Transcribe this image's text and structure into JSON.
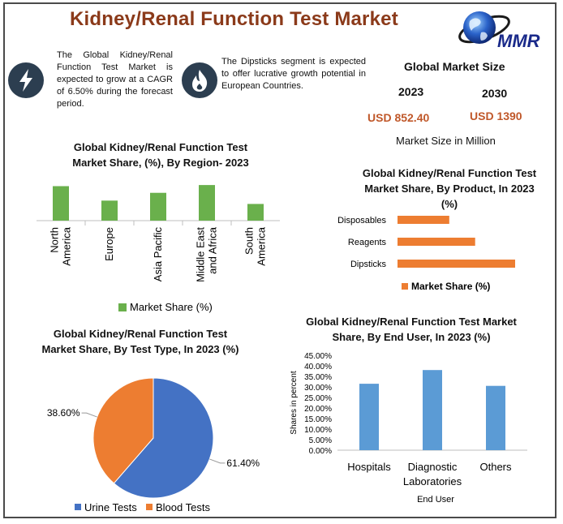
{
  "title": "Kidney/Renal Function Test Market",
  "logo": {
    "text": "MMR"
  },
  "info1": {
    "text": "The Global Kidney/Renal Function Test Market is expected to grow at a CAGR of 6.50% during the forecast period."
  },
  "info2": {
    "text": "The Dipsticks segment is expected to offer lucrative growth potential in European Countries."
  },
  "market_size": {
    "heading": "Global Market Size",
    "year1": "2023",
    "year2": "2030",
    "value1": "USD 852.40",
    "value2": "USD 1390",
    "caption": "Market Size in Million",
    "value_color": "#c0582a"
  },
  "colors": {
    "green": "#6ab04c",
    "orange": "#ed7d31",
    "blue": "#4472c4",
    "lightblue": "#5b9bd5",
    "icon_bg": "#2c3e50"
  },
  "chart_data": [
    {
      "type": "bar",
      "title": "Global Kidney/Renal Function Test Market Share, (%), By Region- 2023",
      "categories": [
        "North America",
        "Europe",
        "Asia Pacific",
        "Middle East and Africa",
        "South America"
      ],
      "series": [
        {
          "name": "Market Share (%)",
          "values": [
            31,
            18,
            25,
            32,
            15
          ]
        }
      ],
      "ylim": [
        0,
        35
      ],
      "legend": "bottom",
      "grid": false
    },
    {
      "type": "bar",
      "orientation": "horizontal",
      "title": "Global Kidney/Renal Function Test Market Share, By Product, In 2023 (%)",
      "categories": [
        "Disposables",
        "Reagents",
        "Dipsticks"
      ],
      "series": [
        {
          "name": "Market Share (%)",
          "values": [
            22,
            33,
            50
          ]
        }
      ],
      "xlim": [
        0,
        50
      ],
      "legend": "bottom",
      "grid": false
    },
    {
      "type": "pie",
      "title": "Global Kidney/Renal Function Test Market Share, By Test Type, In 2023 (%)",
      "labels": [
        "Urine Tests",
        "Blood Tests"
      ],
      "values": [
        61.4,
        38.6
      ],
      "value_labels": [
        "61.40%",
        "38.60%"
      ],
      "legend": "bottom"
    },
    {
      "type": "bar",
      "title": "Global Kidney/Renal Function Test Market Share, By End User, In 2023 (%)",
      "categories": [
        "Hospitals",
        "Diagnostic Laboratories",
        "Others"
      ],
      "series": [
        {
          "values": [
            31.5,
            38.0,
            30.5
          ]
        }
      ],
      "xlabel": "End User",
      "ylabel": "Shares in percent",
      "ylim": [
        0,
        45
      ],
      "yticks": [
        "0.00%",
        "5.00%",
        "10.00%",
        "15.00%",
        "20.00%",
        "25.00%",
        "30.00%",
        "35.00%",
        "40.00%",
        "45.00%"
      ],
      "grid": false
    }
  ]
}
